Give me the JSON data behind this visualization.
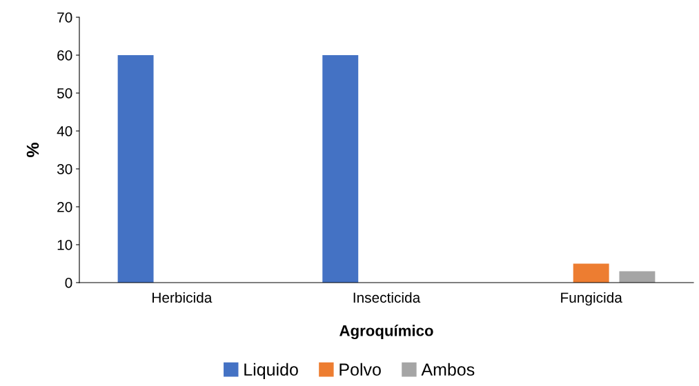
{
  "chart_data": {
    "type": "bar",
    "xlabel": "Agroquímico",
    "ylabel": "%",
    "categories": [
      "Herbicida",
      "Insecticida",
      "Fungicida"
    ],
    "series": [
      {
        "name": "Liquido",
        "color": "#4472c4",
        "values": [
          60,
          60,
          0
        ]
      },
      {
        "name": "Polvo",
        "color": "#ed7d31",
        "values": [
          0,
          0,
          5
        ]
      },
      {
        "name": "Ambos",
        "color": "#a5a5a5",
        "values": [
          0,
          0,
          3
        ]
      }
    ],
    "ylim": [
      0,
      70
    ],
    "yticks": [
      0,
      10,
      20,
      30,
      40,
      50,
      60,
      70
    ],
    "grid": false,
    "legend": "bottom"
  }
}
